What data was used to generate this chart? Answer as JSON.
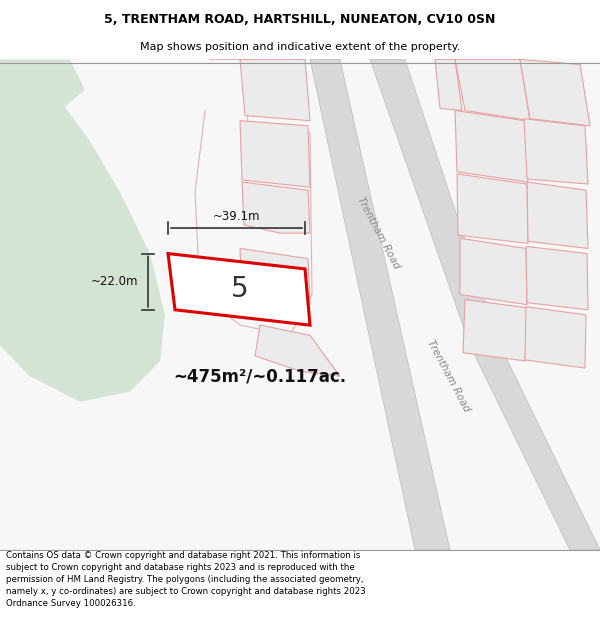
{
  "title_line1": "5, TRENTHAM ROAD, HARTSHILL, NUNEATON, CV10 0SN",
  "title_line2": "Map shows position and indicative extent of the property.",
  "footer_text": "Contains OS data © Crown copyright and database right 2021. This information is subject to Crown copyright and database rights 2023 and is reproduced with the permission of HM Land Registry. The polygons (including the associated geometry, namely x, y co-ordinates) are subject to Crown copyright and database rights 2023 Ordnance Survey 100026316.",
  "area_label": "~475m²/~0.117ac.",
  "plot_number": "5",
  "dim_width": "~39.1m",
  "dim_height": "~22.0m",
  "bg_map_color": "#f7f7f7",
  "bg_white": "#ffffff",
  "road_color": "#d8d8d8",
  "plot_fill": "#efefef",
  "plot_fill_main": "#ffffff",
  "plot_border": "#dd0000",
  "other_plots_fill": "#ebebeb",
  "other_plots_border": "#e8a0a0",
  "green_area_color": "#d4e4d4",
  "road_label": "Trentham Road",
  "title_fontsize": 9,
  "subtitle_fontsize": 8,
  "footer_fontsize": 6.2
}
